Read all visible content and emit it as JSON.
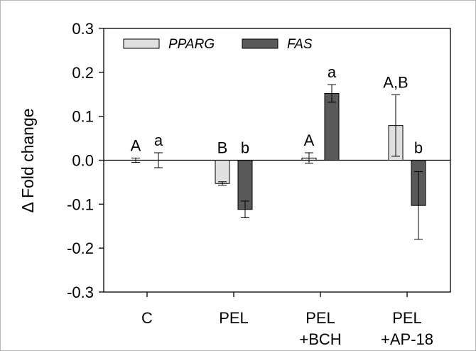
{
  "chart_data": {
    "type": "bar",
    "title": "",
    "xlabel": "",
    "ylabel": "Δ Fold change",
    "ylim": [
      -0.3,
      0.3
    ],
    "yticks": [
      "0.3",
      "0.2",
      "0.1",
      "0.0",
      "-0.1",
      "-0.2",
      "-0.3"
    ],
    "yticks_values": [
      0.3,
      0.2,
      0.1,
      0.0,
      -0.1,
      -0.2,
      -0.3
    ],
    "categories": [
      {
        "line1": "C",
        "line2": ""
      },
      {
        "line1": "PEL",
        "line2": ""
      },
      {
        "line1": "PEL",
        "line2": "+BCH"
      },
      {
        "line1": "PEL",
        "line2": "+AP-18"
      }
    ],
    "series": [
      {
        "name": "PPARG",
        "color": "#e0e0e0",
        "values": [
          0.0,
          -0.053,
          0.005,
          0.079
        ],
        "errors": [
          0.005,
          0.004,
          0.012,
          0.07
        ],
        "labels": [
          "A",
          "B",
          "A",
          "A,B"
        ]
      },
      {
        "name": "FAS",
        "color": "#595959",
        "values": [
          0.0,
          -0.112,
          0.152,
          -0.103
        ],
        "errors": [
          0.017,
          0.019,
          0.02,
          0.077
        ],
        "labels": [
          "a",
          "b",
          "a",
          "b"
        ]
      }
    ],
    "grid": false,
    "legend": "top-left"
  }
}
